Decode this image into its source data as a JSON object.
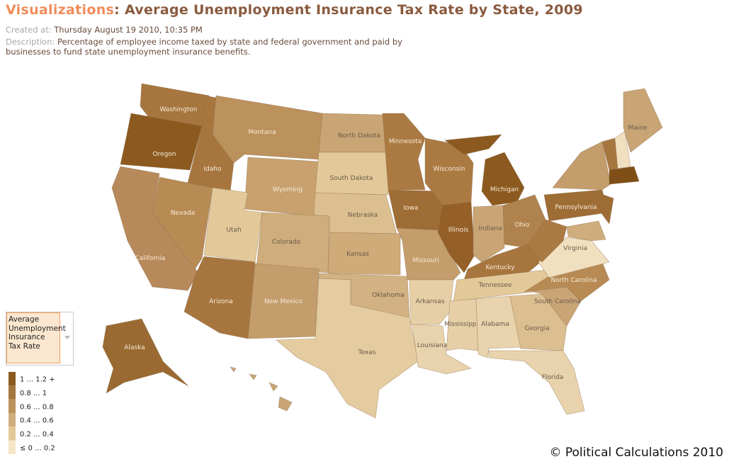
{
  "header": {
    "section": "Visualizations",
    "title": ": Average Unemployment Insurance Tax Rate by State, 2009",
    "created_label": "Created at:",
    "created_value": "Thursday August 19 2010, 10:35 PM",
    "description_label": "Description:",
    "description_value": "Percentage of employee income taxed by state and federal government and paid by businesses to fund state unemployment insurance benefits."
  },
  "selector": "Average Unemployment Insurance Tax Rate",
  "legend": [
    {
      "label": "1 ... 1.2 +",
      "color": "#8a5a1f"
    },
    {
      "label": "0.8 ... 1",
      "color": "#a5763f"
    },
    {
      "label": "0.6 ... 0.8",
      "color": "#bb915c"
    },
    {
      "label": "0.4 ... 0.6",
      "color": "#d0ad7c"
    },
    {
      "label": "0.2 ... 0.4",
      "color": "#e3c999"
    },
    {
      "label": "≤ 0 ... 0.2",
      "color": "#f5e6c8"
    }
  ],
  "states": [
    {
      "label": "Washington",
      "color": "#a7763f"
    },
    {
      "label": "Oregon",
      "color": "#8c5a1f"
    },
    {
      "label": "California",
      "color": "#b8895a"
    },
    {
      "label": "Nevada",
      "color": "#b88b55"
    },
    {
      "label": "Idaho",
      "color": "#a7763f"
    },
    {
      "label": "Montana",
      "color": "#bb915c"
    },
    {
      "label": "Wyoming",
      "color": "#c8a16f"
    },
    {
      "label": "Utah",
      "color": "#e3c999"
    },
    {
      "label": "Colorado",
      "color": "#cfad7c"
    },
    {
      "label": "Arizona",
      "color": "#a7763f"
    },
    {
      "label": "New Mexico",
      "color": "#c39d6b"
    },
    {
      "label": "North Dakota",
      "color": "#c9a575"
    },
    {
      "label": "South Dakota",
      "color": "#e3c999"
    },
    {
      "label": "Nebraska",
      "color": "#dcbf91"
    },
    {
      "label": "Kansas",
      "color": "#cfab79"
    },
    {
      "label": "Oklahoma",
      "color": "#d2b283"
    },
    {
      "label": "Texas",
      "color": "#e5cca0"
    },
    {
      "label": "Minnesota",
      "color": "#ab7a43"
    },
    {
      "label": "Iowa",
      "color": "#9e6c35"
    },
    {
      "label": "Missouri",
      "color": "#c49d6c"
    },
    {
      "label": "Arkansas",
      "color": "#e6cfa6"
    },
    {
      "label": "Louisiana",
      "color": "#e8d3ac"
    },
    {
      "label": "Wisconsin",
      "color": "#ab7a43"
    },
    {
      "label": "Illinois",
      "color": "#955f28"
    },
    {
      "label": "Michigan",
      "color": "#8c5a1f"
    },
    {
      "label": "Indiana",
      "color": "#c9a575"
    },
    {
      "label": "Ohio",
      "color": "#b0824d"
    },
    {
      "label": "Kentucky",
      "color": "#a7763f"
    },
    {
      "label": "Tennessee",
      "color": "#e3c999"
    },
    {
      "label": "Mississippi",
      "color": "#e6cfa6"
    },
    {
      "label": "Alabama",
      "color": "#e8d3ac"
    },
    {
      "label": "Georgia",
      "color": "#dcbf91"
    },
    {
      "label": "Florida",
      "color": "#e8d3ac"
    },
    {
      "label": "South Carolina",
      "color": "#c9a575"
    },
    {
      "label": "North Carolina",
      "color": "#b88b55"
    },
    {
      "label": "Virginia",
      "color": "#f1e0c0"
    },
    {
      "label": null,
      "color": "#ab7a43"
    },
    {
      "label": "Pennsylvania",
      "color": "#9e6c35"
    },
    {
      "label": null,
      "color": "#c39d6b"
    },
    {
      "label": null,
      "color": "#a7763f"
    },
    {
      "label": null,
      "color": "#f1e0c0"
    },
    {
      "label": "Maine",
      "color": "#c9a575"
    },
    {
      "label": null,
      "color": "#7f4f17"
    },
    {
      "label": null,
      "color": "#9e6c35"
    },
    {
      "label": null,
      "color": "#cfad7c"
    },
    {
      "label": "Alaska",
      "color": "#9a6a32"
    },
    {
      "label": null,
      "color": "#c9a575"
    }
  ],
  "copyright": "© Political Calculations 2010"
}
